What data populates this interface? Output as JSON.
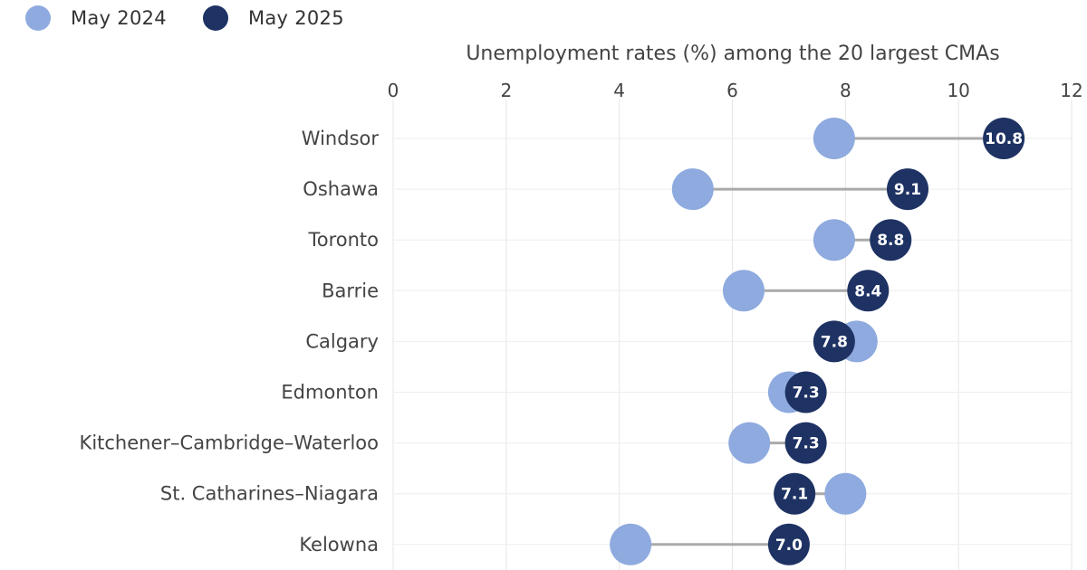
{
  "chart_data": {
    "type": "dumbbell",
    "title": "Unemployment rates (%) among the 20 largest CMAs",
    "xlim": [
      0,
      12
    ],
    "xticks": [
      0,
      2,
      4,
      6,
      8,
      10,
      12
    ],
    "grid": true,
    "legend_position": "top-left",
    "categories": [
      "Windsor",
      "Oshawa",
      "Toronto",
      "Barrie",
      "Calgary",
      "Edmonton",
      "Kitchener–Cambridge–Waterloo",
      "St. Catharines–Niagara",
      "Kelowna"
    ],
    "series": [
      {
        "name": "May 2024",
        "color": "#8eaadf",
        "values": [
          7.8,
          5.3,
          7.8,
          6.2,
          8.2,
          7.0,
          6.3,
          8.0,
          4.2
        ]
      },
      {
        "name": "May 2025",
        "color": "#1e3263",
        "values": [
          10.8,
          9.1,
          8.8,
          8.4,
          7.8,
          7.3,
          7.3,
          7.1,
          7.0
        ]
      }
    ],
    "value_labels": [
      "10.8",
      "9.1",
      "8.8",
      "8.4",
      "7.8",
      "7.3",
      "7.3",
      "7.1",
      "7.0"
    ]
  }
}
